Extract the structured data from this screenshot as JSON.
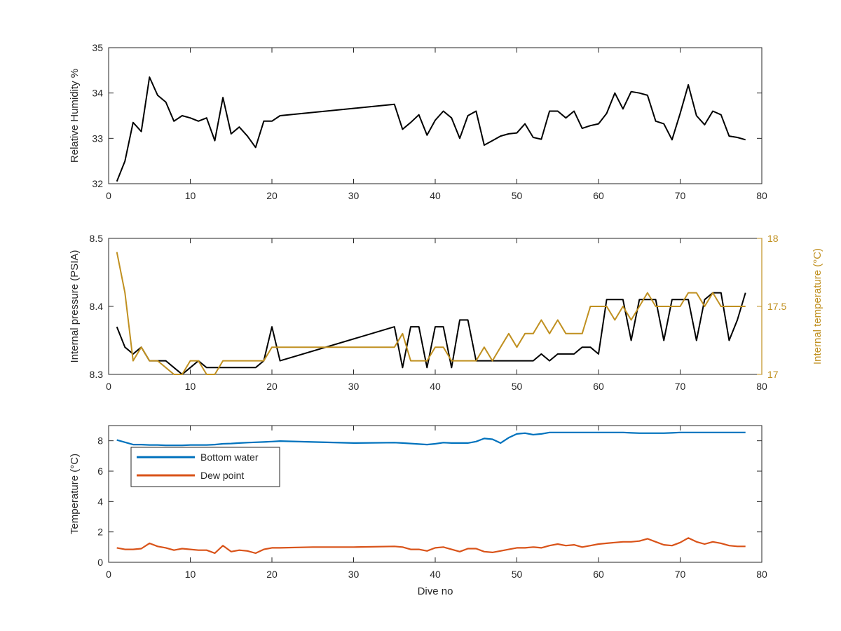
{
  "chart_data": [
    {
      "type": "line",
      "xlabel": "",
      "ylabel": "Relative Humidity %",
      "xlim": [
        0,
        80
      ],
      "ylim": [
        32,
        35
      ],
      "xticks": [
        0,
        10,
        20,
        30,
        40,
        50,
        60,
        70,
        80
      ],
      "yticks": [
        32,
        33,
        34,
        35
      ],
      "grid": false,
      "series": [
        {
          "color": "#000000",
          "x": [
            1,
            2,
            3,
            4,
            5,
            6,
            7,
            8,
            9,
            10,
            11,
            12,
            13,
            14,
            15,
            16,
            17,
            18,
            19,
            20,
            21,
            35,
            36,
            37,
            38,
            39,
            40,
            41,
            42,
            43,
            44,
            45,
            46,
            47,
            48,
            49,
            50,
            51,
            52,
            53,
            54,
            55,
            56,
            57,
            58,
            59,
            60,
            61,
            62,
            63,
            64,
            65,
            66,
            67,
            68,
            69,
            70,
            71,
            72,
            73,
            74,
            75,
            76,
            77,
            78
          ],
          "values": [
            32.05,
            32.5,
            33.35,
            33.15,
            34.35,
            33.95,
            33.8,
            33.38,
            33.5,
            33.45,
            33.38,
            33.45,
            32.95,
            33.9,
            33.1,
            33.25,
            33.05,
            32.8,
            33.38,
            33.38,
            33.5,
            33.75,
            33.2,
            33.35,
            33.52,
            33.07,
            33.4,
            33.6,
            33.45,
            33.0,
            33.5,
            33.6,
            32.85,
            32.95,
            33.05,
            33.1,
            33.12,
            33.32,
            33.02,
            32.98,
            33.6,
            33.6,
            33.45,
            33.6,
            33.22,
            33.28,
            33.32,
            33.55,
            34.0,
            33.65,
            34.03,
            34.0,
            33.95,
            33.38,
            33.32,
            32.97,
            33.55,
            34.18,
            33.5,
            33.3,
            33.6,
            33.52,
            33.05,
            33.02,
            32.97
          ]
        }
      ]
    },
    {
      "type": "line",
      "xlabel": "",
      "ylabel": "Internal pressure (PSIA)",
      "ylabel_right": "Internal temperature (°C)",
      "xlim": [
        0,
        80
      ],
      "ylim": [
        8.3,
        8.5
      ],
      "ylim_right": [
        17,
        18
      ],
      "xticks": [
        0,
        10,
        20,
        30,
        40,
        50,
        60,
        70,
        80
      ],
      "yticks": [
        "8.3",
        "8.4",
        "8.5"
      ],
      "yticks_right": [
        "17",
        "17.5",
        "18"
      ],
      "right_axis_color": "#c09020",
      "grid": false,
      "series": [
        {
          "color": "#000000",
          "axis": "left",
          "x": [
            1,
            2,
            3,
            4,
            5,
            6,
            7,
            8,
            9,
            10,
            11,
            12,
            13,
            14,
            15,
            16,
            17,
            18,
            19,
            20,
            21,
            35,
            36,
            37,
            38,
            39,
            40,
            41,
            42,
            43,
            44,
            45,
            46,
            47,
            48,
            49,
            50,
            51,
            52,
            53,
            54,
            55,
            56,
            57,
            58,
            59,
            60,
            61,
            62,
            63,
            64,
            65,
            66,
            67,
            68,
            69,
            70,
            71,
            72,
            73,
            74,
            75,
            76,
            77,
            78
          ],
          "values": [
            8.37,
            8.34,
            8.33,
            8.34,
            8.32,
            8.32,
            8.32,
            8.31,
            8.3,
            8.31,
            8.32,
            8.31,
            8.31,
            8.31,
            8.31,
            8.31,
            8.31,
            8.31,
            8.32,
            8.37,
            8.32,
            8.37,
            8.31,
            8.37,
            8.37,
            8.31,
            8.37,
            8.37,
            8.31,
            8.38,
            8.38,
            8.32,
            8.32,
            8.32,
            8.32,
            8.32,
            8.32,
            8.32,
            8.32,
            8.33,
            8.32,
            8.33,
            8.33,
            8.33,
            8.34,
            8.34,
            8.33,
            8.41,
            8.41,
            8.41,
            8.35,
            8.41,
            8.41,
            8.41,
            8.35,
            8.41,
            8.41,
            8.41,
            8.35,
            8.41,
            8.42,
            8.42,
            8.35,
            8.38,
            8.42
          ]
        },
        {
          "color": "#c09020",
          "axis": "right",
          "x": [
            1,
            2,
            3,
            4,
            5,
            6,
            7,
            8,
            9,
            10,
            11,
            12,
            13,
            14,
            15,
            16,
            17,
            18,
            19,
            20,
            21,
            35,
            36,
            37,
            38,
            39,
            40,
            41,
            42,
            43,
            44,
            45,
            46,
            47,
            48,
            49,
            50,
            51,
            52,
            53,
            54,
            55,
            56,
            57,
            58,
            59,
            60,
            61,
            62,
            63,
            64,
            65,
            66,
            67,
            68,
            69,
            70,
            71,
            72,
            73,
            74,
            75,
            76,
            77,
            78
          ],
          "values": [
            17.9,
            17.6,
            17.1,
            17.2,
            17.1,
            17.1,
            17.05,
            17.0,
            17.0,
            17.1,
            17.1,
            17.0,
            17.0,
            17.1,
            17.1,
            17.1,
            17.1,
            17.1,
            17.1,
            17.2,
            17.2,
            17.2,
            17.3,
            17.1,
            17.1,
            17.1,
            17.2,
            17.2,
            17.1,
            17.1,
            17.1,
            17.1,
            17.2,
            17.1,
            17.2,
            17.3,
            17.2,
            17.3,
            17.3,
            17.4,
            17.3,
            17.4,
            17.3,
            17.3,
            17.3,
            17.5,
            17.5,
            17.5,
            17.4,
            17.5,
            17.4,
            17.5,
            17.6,
            17.5,
            17.5,
            17.5,
            17.5,
            17.6,
            17.6,
            17.5,
            17.6,
            17.5,
            17.5,
            17.5,
            17.5
          ]
        }
      ]
    },
    {
      "type": "line",
      "xlabel": "Dive no",
      "ylabel": "Temperature (°C)",
      "xlim": [
        0,
        80
      ],
      "ylim": [
        0,
        9
      ],
      "xticks": [
        0,
        10,
        20,
        30,
        40,
        50,
        60,
        70,
        80
      ],
      "yticks": [
        0,
        2,
        4,
        6,
        8
      ],
      "grid": false,
      "legend_position": "top-left",
      "series": [
        {
          "name": "Bottom water",
          "color": "#0072bd",
          "x": [
            1,
            2,
            3,
            4,
            5,
            6,
            7,
            8,
            9,
            10,
            11,
            12,
            13,
            14,
            15,
            16,
            17,
            18,
            19,
            20,
            21,
            25,
            30,
            35,
            36,
            37,
            38,
            39,
            40,
            41,
            42,
            43,
            44,
            45,
            46,
            47,
            48,
            49,
            50,
            51,
            52,
            53,
            54,
            55,
            56,
            57,
            58,
            59,
            60,
            61,
            62,
            63,
            64,
            65,
            66,
            67,
            68,
            69,
            70,
            71,
            72,
            73,
            74,
            75,
            76,
            77,
            78
          ],
          "values": [
            8.05,
            7.9,
            7.75,
            7.75,
            7.72,
            7.72,
            7.7,
            7.7,
            7.7,
            7.72,
            7.72,
            7.72,
            7.75,
            7.8,
            7.82,
            7.85,
            7.88,
            7.9,
            7.92,
            7.95,
            7.98,
            7.92,
            7.85,
            7.88,
            7.85,
            7.82,
            7.78,
            7.75,
            7.8,
            7.88,
            7.85,
            7.85,
            7.85,
            7.95,
            8.15,
            8.1,
            7.85,
            8.2,
            8.45,
            8.5,
            8.4,
            8.45,
            8.55,
            8.55,
            8.55,
            8.55,
            8.55,
            8.55,
            8.55,
            8.55,
            8.55,
            8.55,
            8.52,
            8.5,
            8.5,
            8.5,
            8.5,
            8.52,
            8.55,
            8.55,
            8.55,
            8.55,
            8.55,
            8.55,
            8.55,
            8.55,
            8.55
          ]
        },
        {
          "name": "Dew point",
          "color": "#d95319",
          "x": [
            1,
            2,
            3,
            4,
            5,
            6,
            7,
            8,
            9,
            10,
            11,
            12,
            13,
            14,
            15,
            16,
            17,
            18,
            19,
            20,
            21,
            25,
            30,
            35,
            36,
            37,
            38,
            39,
            40,
            41,
            42,
            43,
            44,
            45,
            46,
            47,
            48,
            49,
            50,
            51,
            52,
            53,
            54,
            55,
            56,
            57,
            58,
            59,
            60,
            61,
            62,
            63,
            64,
            65,
            66,
            67,
            68,
            69,
            70,
            71,
            72,
            73,
            74,
            75,
            76,
            77,
            78
          ],
          "values": [
            0.95,
            0.85,
            0.85,
            0.9,
            1.25,
            1.05,
            0.95,
            0.8,
            0.9,
            0.85,
            0.8,
            0.8,
            0.6,
            1.1,
            0.7,
            0.8,
            0.75,
            0.6,
            0.85,
            0.95,
            0.95,
            1.0,
            1.0,
            1.05,
            1.0,
            0.85,
            0.85,
            0.75,
            0.95,
            1.0,
            0.85,
            0.7,
            0.9,
            0.9,
            0.7,
            0.65,
            0.75,
            0.85,
            0.95,
            0.95,
            1.0,
            0.95,
            1.1,
            1.2,
            1.1,
            1.15,
            1.0,
            1.1,
            1.2,
            1.25,
            1.3,
            1.35,
            1.35,
            1.4,
            1.55,
            1.35,
            1.15,
            1.1,
            1.3,
            1.6,
            1.35,
            1.2,
            1.35,
            1.25,
            1.1,
            1.05,
            1.05
          ]
        }
      ]
    }
  ]
}
